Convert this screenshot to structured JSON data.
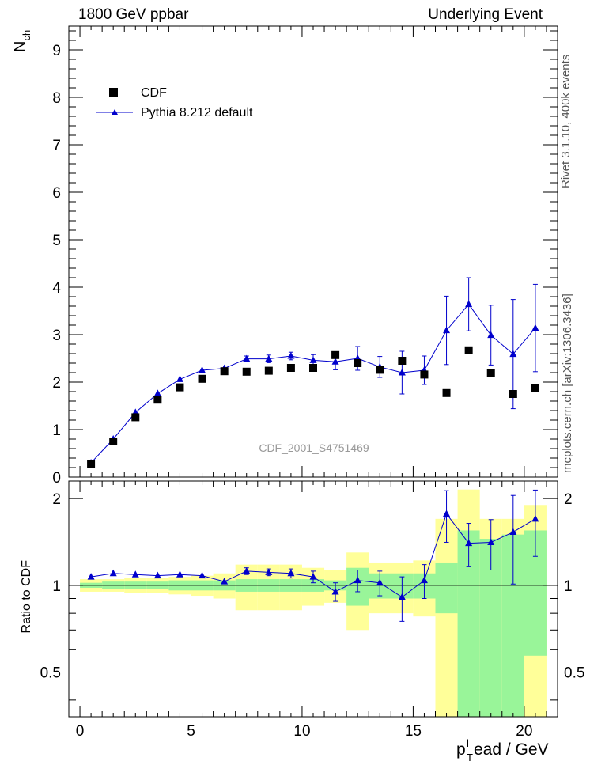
{
  "header": {
    "left": "1800 GeV ppbar",
    "right": "Underlying Event"
  },
  "side_labels": {
    "rivet": "Rivet 3.1.10,  400k events",
    "mcplots": "mcplots.cern.ch [arXiv:1306.3436]"
  },
  "colors": {
    "mc": "#0000cc",
    "data": "#000000",
    "band_inner": "#99f599",
    "band_outer": "#ffff99"
  },
  "chart_data": [
    {
      "type": "scatter",
      "panel": "main",
      "title": "",
      "watermark": "CDF_2001_S4751469",
      "ylabel": "N",
      "ylabel_sub": "ch",
      "xlim": [
        -0.5,
        21.5
      ],
      "ylim": [
        0,
        9.5
      ],
      "yticks": [
        0,
        1,
        2,
        3,
        4,
        5,
        6,
        7,
        8,
        9
      ],
      "ytick_labels": [
        "0",
        "1",
        "2",
        "3",
        "4",
        "5",
        "6",
        "7",
        "8",
        "9"
      ],
      "legend": {
        "position": "top-left",
        "entries": [
          {
            "label": "CDF",
            "style": "square"
          },
          {
            "label": "Pythia 8.212 default",
            "style": "line-triangle"
          }
        ]
      },
      "x": [
        0.5,
        1.5,
        2.5,
        3.5,
        4.5,
        5.5,
        6.5,
        7.5,
        8.5,
        9.5,
        10.5,
        11.5,
        12.5,
        13.5,
        14.5,
        15.5,
        16.5,
        17.5,
        18.5,
        19.5,
        20.5
      ],
      "series": [
        {
          "name": "CDF",
          "values": [
            0.28,
            0.75,
            1.26,
            1.63,
            1.89,
            2.07,
            2.23,
            2.22,
            2.24,
            2.3,
            2.3,
            2.57,
            2.4,
            2.26,
            2.45,
            2.16,
            1.77,
            2.67,
            2.19,
            1.75,
            1.87
          ]
        },
        {
          "name": "Pythia 8.212 default",
          "values": [
            0.3,
            0.8,
            1.36,
            1.76,
            2.06,
            2.25,
            2.29,
            2.49,
            2.49,
            2.55,
            2.46,
            2.43,
            2.5,
            2.32,
            2.2,
            2.25,
            3.09,
            3.64,
            2.99,
            2.59,
            3.14
          ],
          "errors": [
            0.02,
            0.02,
            0.03,
            0.04,
            0.04,
            0.05,
            0.05,
            0.06,
            0.08,
            0.08,
            0.12,
            0.17,
            0.25,
            0.22,
            0.45,
            0.3,
            0.72,
            0.56,
            0.63,
            1.15,
            0.92
          ]
        }
      ]
    },
    {
      "type": "line",
      "panel": "ratio",
      "ylabel": "Ratio to CDF",
      "xlabel": "p",
      "xlabel_sup": "l",
      "xlabel_sub": "T",
      "xlabel_rest": "ead / GeV",
      "xlim": [
        -0.5,
        21.5
      ],
      "ylim": [
        0.35,
        2.3
      ],
      "yticks": [
        0.5,
        1,
        2
      ],
      "ytick_labels": [
        "0.5",
        "1",
        "2"
      ],
      "xticks": [
        0,
        5,
        10,
        15,
        20
      ],
      "xtick_labels": [
        "0",
        "5",
        "10",
        "15",
        "20"
      ],
      "reference": 1,
      "band_inner": {
        "low": [
          0.98,
          0.97,
          0.97,
          0.97,
          0.96,
          0.96,
          0.96,
          0.95,
          0.95,
          0.95,
          0.95,
          0.96,
          0.85,
          0.9,
          0.9,
          0.9,
          0.8,
          0.35,
          0.35,
          0.35,
          0.57
        ],
        "high": [
          1.02,
          1.03,
          1.03,
          1.03,
          1.04,
          1.04,
          1.04,
          1.05,
          1.05,
          1.05,
          1.05,
          1.04,
          1.15,
          1.1,
          1.1,
          1.1,
          1.2,
          1.55,
          1.45,
          1.5,
          1.55
        ]
      },
      "band_outer": {
        "low": [
          0.95,
          0.95,
          0.94,
          0.94,
          0.93,
          0.92,
          0.9,
          0.82,
          0.82,
          0.82,
          0.85,
          0.87,
          0.7,
          0.8,
          0.8,
          0.78,
          0.35,
          0.35,
          0.35,
          0.35,
          0.35
        ],
        "high": [
          1.05,
          1.05,
          1.06,
          1.06,
          1.07,
          1.08,
          1.1,
          1.18,
          1.18,
          1.18,
          1.15,
          1.13,
          1.3,
          1.2,
          1.2,
          1.22,
          1.7,
          2.15,
          1.7,
          1.7,
          1.9
        ]
      },
      "x": [
        0.5,
        1.5,
        2.5,
        3.5,
        4.5,
        5.5,
        6.5,
        7.5,
        8.5,
        9.5,
        10.5,
        11.5,
        12.5,
        13.5,
        14.5,
        15.5,
        16.5,
        17.5,
        18.5,
        19.5,
        20.5
      ],
      "series": [
        {
          "name": "Pythia 8.212 default",
          "values": [
            1.07,
            1.1,
            1.09,
            1.08,
            1.09,
            1.08,
            1.03,
            1.12,
            1.11,
            1.1,
            1.07,
            0.95,
            1.04,
            1.02,
            0.91,
            1.04,
            1.77,
            1.4,
            1.41,
            1.53,
            1.7
          ],
          "errors": [
            0.01,
            0.01,
            0.01,
            0.01,
            0.01,
            0.02,
            0.02,
            0.03,
            0.03,
            0.04,
            0.05,
            0.07,
            0.09,
            0.1,
            0.16,
            0.14,
            0.36,
            0.24,
            0.28,
            0.52,
            0.44
          ]
        }
      ]
    }
  ]
}
